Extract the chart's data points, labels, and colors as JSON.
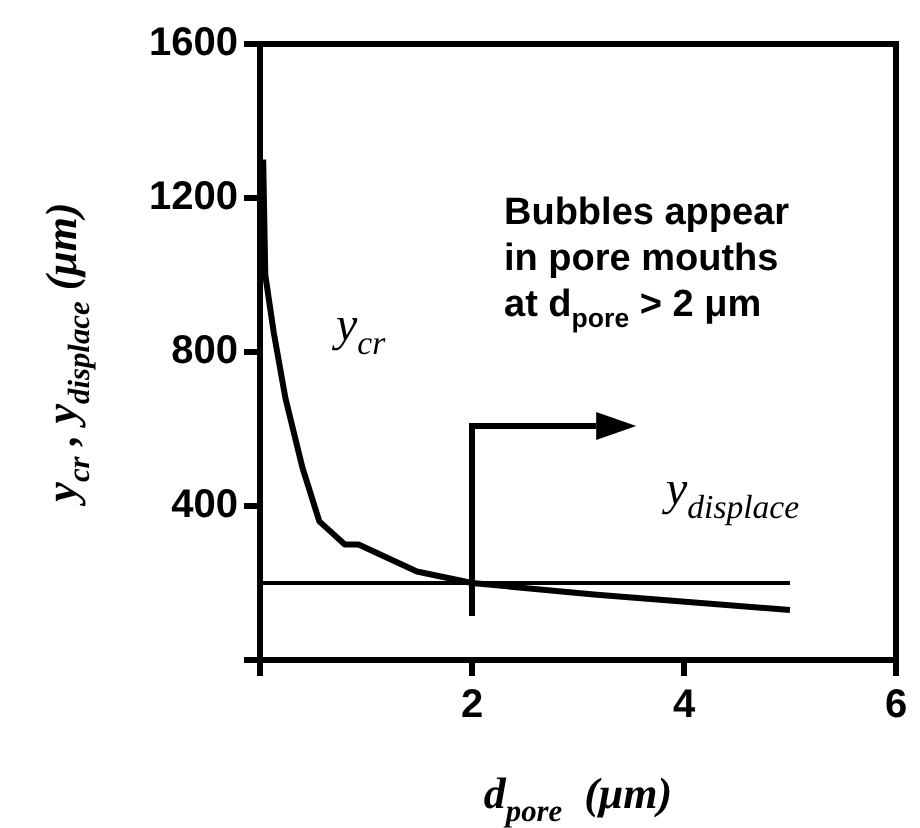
{
  "chart_data": {
    "type": "line",
    "xlabel": "d$_{pore}$  (μm)",
    "ylabel": "y$_{cr}$ , y$_{displace}$ (μm)",
    "xlim": [
      0,
      6
    ],
    "xticks": [
      {
        "value": 0,
        "label": null
      },
      2,
      4,
      6
    ],
    "ylim": [
      0,
      1600
    ],
    "yticks": [
      {
        "value": 0,
        "label": null
      },
      400,
      800,
      1200,
      1600
    ],
    "grid": false,
    "marker": "none",
    "line_style": "solid",
    "series": [
      {
        "name": "y$_{cr}$",
        "color": "#000000",
        "x": [
          0.03,
          0.05,
          0.13,
          0.24,
          0.4,
          0.56,
          0.8,
          0.93,
          1.48,
          2,
          3.15,
          5
        ],
        "values": [
          1300,
          1000,
          850,
          680,
          500,
          360,
          300,
          300,
          230,
          200,
          170,
          130
        ]
      },
      {
        "name": "y$_{displace}$",
        "color": "#000000",
        "x": [
          0,
          5
        ],
        "values": [
          200,
          200
        ]
      }
    ],
    "annotations": [
      "Bubbles appear\nin pore mouths\nat d$_{pore}$ > 2 μm"
    ]
  }
}
